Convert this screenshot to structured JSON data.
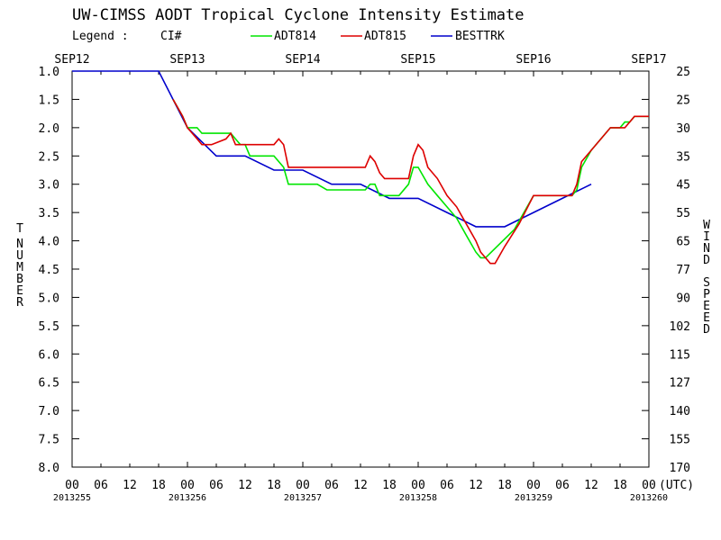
{
  "chart_data": {
    "type": "line",
    "title": "UW-CIMSS AODT Tropical Cyclone Intensity Estimate",
    "legend": {
      "label": "Legend :",
      "quantity": "CI#",
      "entries": [
        {
          "name": "ADT814",
          "color": "#00e600"
        },
        {
          "name": "ADT815",
          "color": "#dd0000"
        },
        {
          "name": "BESTTRK",
          "color": "#0000cc"
        }
      ]
    },
    "left_axis_label": "T NUMBER",
    "right_axis_label": "WIND SPEED",
    "x_unit_label": "(UTC)",
    "x_range_hours": [
      0,
      120
    ],
    "y_range": [
      1.0,
      8.0
    ],
    "y_inverted": true,
    "date_labels": [
      "SEP12",
      "SEP13",
      "SEP14",
      "SEP15",
      "SEP16",
      "SEP17"
    ],
    "hour_tick_labels": [
      "00",
      "06",
      "12",
      "18",
      "00",
      "06",
      "12",
      "18",
      "00",
      "06",
      "12",
      "18",
      "00",
      "06",
      "12",
      "18",
      "00",
      "06",
      "12",
      "18",
      "00"
    ],
    "julian_labels": [
      "2013255",
      "2013256",
      "2013257",
      "2013258",
      "2013259",
      "2013260"
    ],
    "y_ticks": [
      "1.0",
      "1.5",
      "2.0",
      "2.5",
      "3.0",
      "3.5",
      "4.0",
      "4.5",
      "5.0",
      "5.5",
      "6.0",
      "6.5",
      "7.0",
      "7.5",
      "8.0"
    ],
    "wind_ticks": [
      "25",
      "25",
      "30",
      "35",
      "45",
      "55",
      "65",
      "77",
      "90",
      "102",
      "115",
      "127",
      "140",
      "155",
      "170"
    ],
    "series": [
      {
        "name": "BESTTRK",
        "color": "#0000cc",
        "points": [
          [
            0,
            1.0
          ],
          [
            18,
            1.0
          ],
          [
            24,
            2.0
          ],
          [
            30,
            2.5
          ],
          [
            36,
            2.5
          ],
          [
            42,
            2.75
          ],
          [
            48,
            2.75
          ],
          [
            54,
            3.0
          ],
          [
            60,
            3.0
          ],
          [
            66,
            3.25
          ],
          [
            72,
            3.25
          ],
          [
            78,
            3.5
          ],
          [
            84,
            3.75
          ],
          [
            90,
            3.75
          ],
          [
            96,
            3.5
          ],
          [
            102,
            3.25
          ],
          [
            108,
            3.0
          ]
        ]
      },
      {
        "name": "ADT814",
        "color": "#00e600",
        "points": [
          [
            21,
            1.5
          ],
          [
            23,
            1.8
          ],
          [
            24,
            2.0
          ],
          [
            26,
            2.0
          ],
          [
            27,
            2.1
          ],
          [
            33,
            2.1
          ],
          [
            34,
            2.2
          ],
          [
            35,
            2.3
          ],
          [
            36,
            2.3
          ],
          [
            37,
            2.5
          ],
          [
            42,
            2.5
          ],
          [
            44,
            2.7
          ],
          [
            45,
            3.0
          ],
          [
            51,
            3.0
          ],
          [
            53,
            3.1
          ],
          [
            57,
            3.1
          ],
          [
            61,
            3.1
          ],
          [
            62,
            3.0
          ],
          [
            63,
            3.0
          ],
          [
            64,
            3.2
          ],
          [
            68,
            3.2
          ],
          [
            70,
            3.0
          ],
          [
            71,
            2.7
          ],
          [
            72,
            2.7
          ],
          [
            74,
            3.0
          ],
          [
            76,
            3.2
          ],
          [
            78,
            3.4
          ],
          [
            80,
            3.6
          ],
          [
            82,
            3.9
          ],
          [
            84,
            4.2
          ],
          [
            85,
            4.3
          ],
          [
            86,
            4.3
          ],
          [
            92,
            3.8
          ],
          [
            96,
            3.2
          ],
          [
            99,
            3.2
          ],
          [
            104,
            3.2
          ],
          [
            105,
            3.1
          ],
          [
            106,
            2.7
          ],
          [
            108,
            2.4
          ],
          [
            110,
            2.2
          ],
          [
            112,
            2.0
          ],
          [
            114,
            2.0
          ],
          [
            115,
            1.9
          ],
          [
            116,
            1.9
          ],
          [
            117,
            1.8
          ],
          [
            118,
            1.8
          ],
          [
            119,
            1.8
          ],
          [
            120,
            1.8
          ]
        ]
      },
      {
        "name": "ADT815",
        "color": "#dd0000",
        "points": [
          [
            21,
            1.5
          ],
          [
            23,
            1.8
          ],
          [
            24,
            2.0
          ],
          [
            26,
            2.2
          ],
          [
            27,
            2.3
          ],
          [
            29,
            2.3
          ],
          [
            32,
            2.2
          ],
          [
            33,
            2.1
          ],
          [
            34,
            2.3
          ],
          [
            42,
            2.3
          ],
          [
            43,
            2.2
          ],
          [
            44,
            2.3
          ],
          [
            45,
            2.7
          ],
          [
            52,
            2.7
          ],
          [
            54,
            2.7
          ],
          [
            56,
            2.7
          ],
          [
            58,
            2.7
          ],
          [
            61,
            2.7
          ],
          [
            62,
            2.5
          ],
          [
            63,
            2.6
          ],
          [
            64,
            2.8
          ],
          [
            65,
            2.9
          ],
          [
            70,
            2.9
          ],
          [
            71,
            2.5
          ],
          [
            72,
            2.3
          ],
          [
            73,
            2.4
          ],
          [
            74,
            2.7
          ],
          [
            76,
            2.9
          ],
          [
            78,
            3.2
          ],
          [
            80,
            3.4
          ],
          [
            82,
            3.7
          ],
          [
            84,
            4.0
          ],
          [
            85,
            4.2
          ],
          [
            86,
            4.3
          ],
          [
            87,
            4.4
          ],
          [
            88,
            4.4
          ],
          [
            90,
            4.1
          ],
          [
            93,
            3.7
          ],
          [
            96,
            3.2
          ],
          [
            99,
            3.2
          ],
          [
            104,
            3.2
          ],
          [
            105,
            3.0
          ],
          [
            106,
            2.6
          ],
          [
            108,
            2.4
          ],
          [
            110,
            2.2
          ],
          [
            112,
            2.0
          ],
          [
            114,
            2.0
          ],
          [
            115,
            2.0
          ],
          [
            116,
            1.9
          ],
          [
            117,
            1.8
          ],
          [
            118,
            1.8
          ],
          [
            119,
            1.8
          ],
          [
            120,
            1.8
          ]
        ]
      }
    ]
  }
}
